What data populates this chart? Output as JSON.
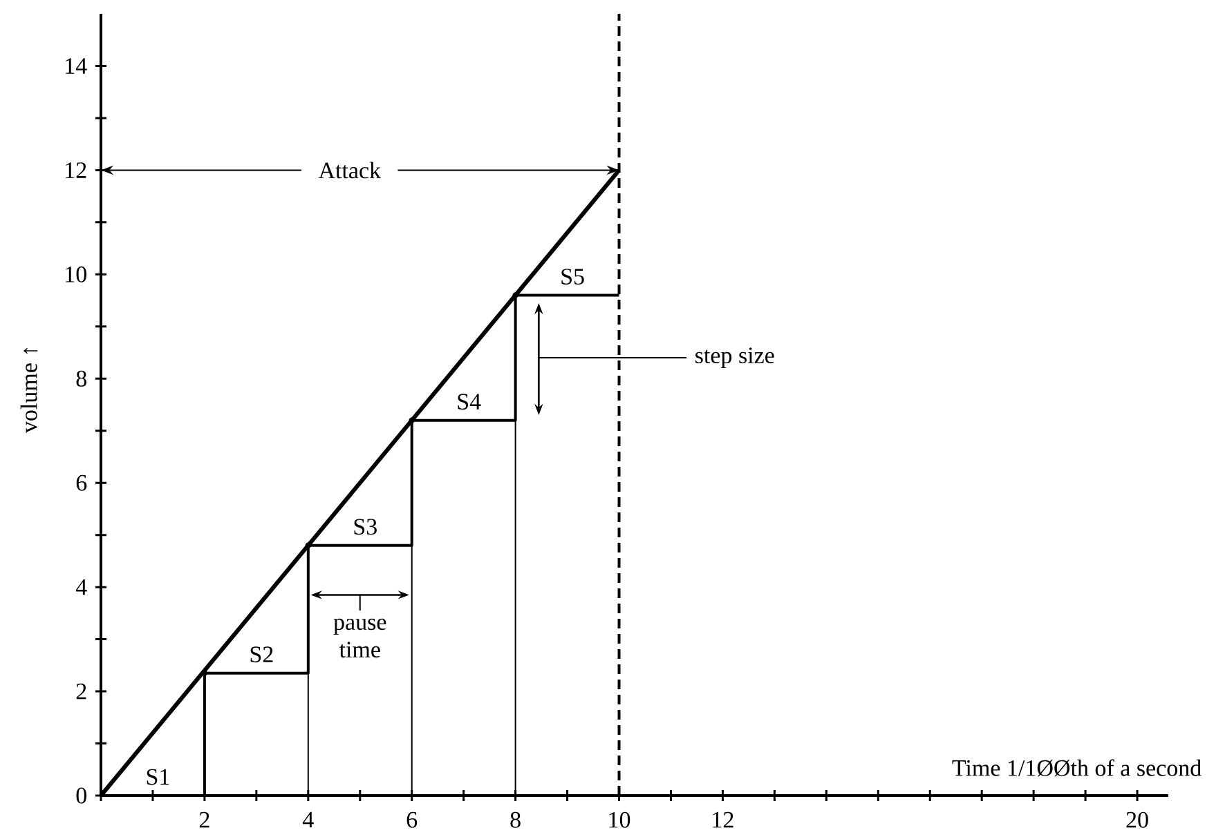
{
  "chart_data": {
    "type": "line",
    "xlabel": "Time 1/1ØØth of a second",
    "ylabel": "volume ↑",
    "xlim": [
      0,
      20.6
    ],
    "ylim": [
      0,
      15
    ],
    "xticks": [
      {
        "value": 0,
        "label": null
      },
      {
        "value": 1,
        "label": null
      },
      2,
      {
        "value": 3,
        "label": null
      },
      4,
      {
        "value": 5,
        "label": null
      },
      6,
      {
        "value": 7,
        "label": null
      },
      8,
      {
        "value": 9,
        "label": null
      },
      10,
      {
        "value": 11,
        "label": null
      },
      12,
      {
        "value": 13,
        "label": null
      },
      {
        "value": 14,
        "label": null
      },
      {
        "value": 15,
        "label": null
      },
      {
        "value": 16,
        "label": null
      },
      {
        "value": 17,
        "label": null
      },
      {
        "value": 18,
        "label": null
      },
      {
        "value": 19,
        "label": null
      },
      20
    ],
    "yticks": [
      0,
      {
        "value": 1,
        "label": null
      },
      2,
      {
        "value": 3,
        "label": null
      },
      4,
      {
        "value": 5,
        "label": null
      },
      6,
      {
        "value": 7,
        "label": null
      },
      8,
      {
        "value": 9,
        "label": null
      },
      10,
      {
        "value": 11,
        "label": null
      },
      12,
      {
        "value": 13,
        "label": null
      },
      14
    ],
    "series": [
      {
        "x": [
          0,
          10
        ],
        "values": [
          0,
          12
        ],
        "color": "#000000"
      },
      {
        "type": "step",
        "x": [
          0,
          2,
          4,
          6,
          8,
          10
        ],
        "values": [
          0,
          2.35,
          4.8,
          7.2,
          9.6,
          9.6
        ],
        "color": "#000000"
      },
      {
        "type": "lollipop",
        "x": [
          2,
          4,
          6,
          8
        ],
        "values": [
          2.35,
          4.8,
          7.2,
          9.6
        ],
        "color": "#000000"
      }
    ],
    "ref_lines": [
      {
        "axis": "x",
        "value": 10,
        "line_style": "dashed",
        "color": "#000000"
      }
    ],
    "annotations": [
      {
        "text": "Attack",
        "x": 10,
        "y": 12
      },
      "step size",
      "pause time",
      "S1",
      "S2",
      "S3",
      "S4",
      "S5"
    ],
    "grid": false
  }
}
